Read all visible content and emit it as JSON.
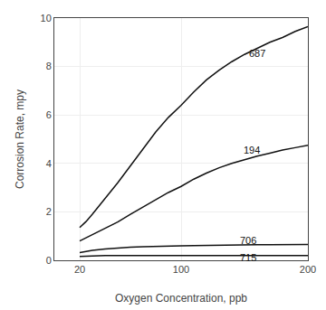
{
  "chart_data": {
    "type": "line",
    "xlabel": "Oxygen Concentration, ppb",
    "ylabel": "Corrosion Rate, mpy",
    "x": [
      20,
      25,
      30,
      40,
      50,
      60,
      70,
      80,
      90,
      100,
      110,
      120,
      130,
      140,
      150,
      160,
      170,
      180,
      190,
      200
    ],
    "series": [
      {
        "name": "687",
        "color": "#111111",
        "values": [
          1.35,
          1.6,
          1.9,
          2.55,
          3.2,
          3.9,
          4.6,
          5.3,
          5.9,
          6.4,
          6.95,
          7.45,
          7.85,
          8.2,
          8.5,
          8.75,
          9.0,
          9.2,
          9.45,
          9.65
        ]
      },
      {
        "name": "194",
        "color": "#111111",
        "values": [
          0.8,
          0.93,
          1.05,
          1.3,
          1.58,
          1.9,
          2.2,
          2.5,
          2.8,
          3.05,
          3.35,
          3.6,
          3.82,
          4.0,
          4.15,
          4.3,
          4.42,
          4.55,
          4.65,
          4.75
        ]
      },
      {
        "name": "706",
        "color": "#111111",
        "values": [
          0.32,
          0.37,
          0.41,
          0.47,
          0.51,
          0.54,
          0.56,
          0.58,
          0.59,
          0.6,
          0.61,
          0.62,
          0.63,
          0.63,
          0.64,
          0.64,
          0.64,
          0.65,
          0.65,
          0.65
        ]
      },
      {
        "name": "715",
        "color": "#111111",
        "values": [
          0.16,
          0.175,
          0.185,
          0.195,
          0.2,
          0.2,
          0.2,
          0.2,
          0.2,
          0.2,
          0.2,
          0.2,
          0.2,
          0.2,
          0.2,
          0.2,
          0.2,
          0.2,
          0.2,
          0.2
        ]
      }
    ],
    "annotations": [
      {
        "text": "687",
        "x": 152,
        "y": 8.55
      },
      {
        "text": "194",
        "x": 148,
        "y": 4.55
      },
      {
        "text": "706",
        "x": 145,
        "y": 0.82
      },
      {
        "text": "715",
        "x": 145,
        "y": 0.1
      }
    ],
    "xlim": [
      0,
      200
    ],
    "ylim": [
      0,
      10
    ],
    "xticks": [
      20,
      100,
      200
    ],
    "yticks": [
      0,
      2,
      4,
      6,
      8,
      10
    ],
    "grid": true
  }
}
